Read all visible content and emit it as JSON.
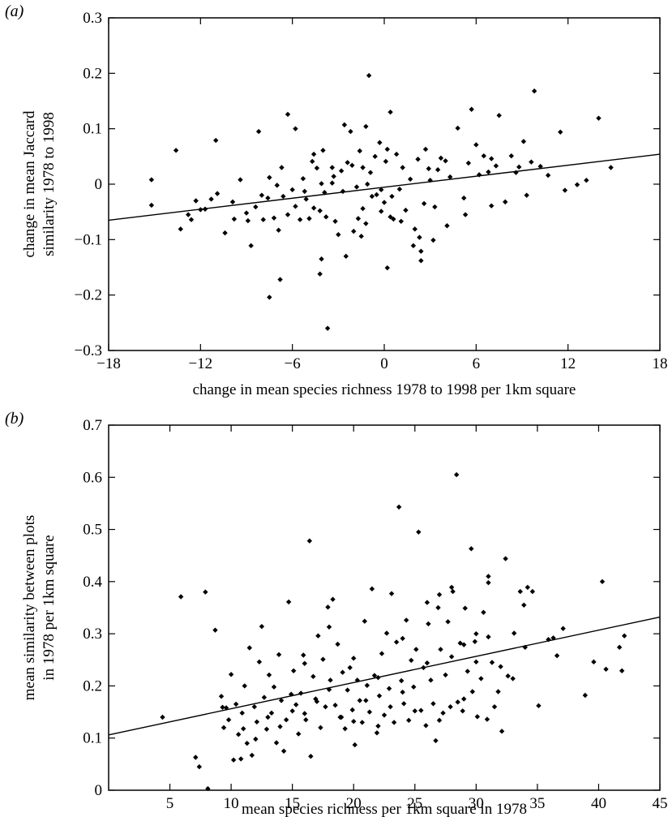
{
  "chart_data": [
    {
      "type": "scatter",
      "panel": "(a)",
      "panel_letter": "a",
      "xlabel": "change in mean species richness 1978 to 1998 per 1km square",
      "ylabel_lines": [
        "change in mean Jaccard",
        "similarity 1978 to 1998"
      ],
      "xlim": [
        -18,
        18
      ],
      "ylim": [
        -0.3,
        0.3
      ],
      "xticks": [
        -18,
        -12,
        -6,
        0,
        6,
        12,
        18
      ],
      "yticks": [
        -0.3,
        -0.2,
        -0.1,
        0,
        0.1,
        0.2,
        0.3
      ],
      "xtick_labels": [
        "−18",
        "−12",
        "−6",
        "0",
        "6",
        "12",
        "18"
      ],
      "ytick_labels": [
        "−0.3",
        "−0.2",
        "−0.1",
        "0",
        "0.1",
        "0.2",
        "0.3"
      ],
      "regression_line": {
        "x": [
          -18,
          18
        ],
        "y": [
          -0.065,
          0.054
        ]
      },
      "points": [
        [
          -15.2,
          0.008
        ],
        [
          -15.2,
          -0.038
        ],
        [
          -13.6,
          0.061
        ],
        [
          -13.3,
          -0.081
        ],
        [
          -12.8,
          -0.055
        ],
        [
          -12.6,
          -0.064
        ],
        [
          -12.3,
          -0.03
        ],
        [
          -11.7,
          -0.045
        ],
        [
          -11.3,
          -0.027
        ],
        [
          -11.0,
          0.079
        ],
        [
          -10.4,
          -0.088
        ],
        [
          -9.8,
          -0.063
        ],
        [
          -9.4,
          0.008
        ],
        [
          -9.0,
          -0.052
        ],
        [
          -8.9,
          -0.066
        ],
        [
          -8.4,
          -0.041
        ],
        [
          -8.0,
          -0.02
        ],
        [
          -7.9,
          -0.064
        ],
        [
          -7.5,
          0.012
        ],
        [
          -7.2,
          -0.061
        ],
        [
          -7.0,
          -0.002
        ],
        [
          -6.9,
          -0.083
        ],
        [
          -6.6,
          -0.022
        ],
        [
          -6.3,
          -0.055
        ],
        [
          -6.3,
          0.126
        ],
        [
          -5.8,
          -0.04
        ],
        [
          -5.8,
          0.1
        ],
        [
          -5.5,
          -0.064
        ],
        [
          -5.3,
          0.01
        ],
        [
          -5.2,
          -0.013
        ],
        [
          -4.9,
          -0.062
        ],
        [
          -4.6,
          -0.043
        ],
        [
          -4.4,
          0.029
        ],
        [
          -4.1,
          0.001
        ],
        [
          -4.0,
          0.061
        ],
        [
          -3.9,
          -0.015
        ],
        [
          -3.8,
          -0.059
        ],
        [
          -3.4,
          0.002
        ],
        [
          -3.2,
          -0.067
        ],
        [
          -2.8,
          0.024
        ],
        [
          -2.7,
          -0.013
        ],
        [
          -2.4,
          0.039
        ],
        [
          -2.1,
          0.034
        ],
        [
          -1.8,
          -0.005
        ],
        [
          -1.6,
          0.06
        ],
        [
          -1.4,
          -0.044
        ],
        [
          -1.2,
          -0.071
        ],
        [
          -1.1,
          0.0
        ],
        [
          -0.8,
          -0.022
        ],
        [
          -0.6,
          0.05
        ],
        [
          -0.5,
          -0.019
        ],
        [
          -0.3,
          0.075
        ],
        [
          -0.2,
          -0.049
        ],
        [
          0.0,
          -0.033
        ],
        [
          0.2,
          0.063
        ],
        [
          0.4,
          -0.059
        ],
        [
          0.5,
          -0.022
        ],
        [
          0.8,
          0.054
        ],
        [
          1.2,
          0.03
        ],
        [
          1.4,
          -0.047
        ],
        [
          1.7,
          0.009
        ],
        [
          2.0,
          -0.081
        ],
        [
          2.2,
          0.045
        ],
        [
          2.4,
          -0.121
        ],
        [
          2.6,
          -0.035
        ],
        [
          2.9,
          0.028
        ],
        [
          3.2,
          -0.101
        ],
        [
          3.7,
          0.047
        ],
        [
          4.1,
          -0.075
        ],
        [
          4.3,
          0.013
        ],
        [
          4.8,
          0.101
        ],
        [
          5.2,
          -0.025
        ],
        [
          5.5,
          0.038
        ],
        [
          5.7,
          0.135
        ],
        [
          6.2,
          0.017
        ],
        [
          6.5,
          0.051
        ],
        [
          7.0,
          -0.039
        ],
        [
          7.3,
          0.033
        ],
        [
          7.5,
          0.124
        ],
        [
          7.9,
          -0.032
        ],
        [
          8.3,
          0.051
        ],
        [
          8.6,
          0.021
        ],
        [
          9.1,
          0.077
        ],
        [
          9.6,
          0.04
        ],
        [
          9.8,
          0.168
        ],
        [
          10.2,
          0.032
        ],
        [
          10.7,
          0.016
        ],
        [
          11.5,
          0.094
        ],
        [
          11.8,
          -0.011
        ],
        [
          12.6,
          -0.001
        ],
        [
          13.2,
          0.007
        ],
        [
          14.0,
          0.119
        ],
        [
          14.8,
          0.03
        ],
        [
          -8.7,
          -0.111
        ],
        [
          -6.8,
          -0.172
        ],
        [
          -7.5,
          -0.204
        ],
        [
          -3.7,
          -0.26
        ],
        [
          -4.2,
          -0.162
        ],
        [
          -4.1,
          -0.135
        ],
        [
          -2.5,
          -0.13
        ],
        [
          -1.5,
          -0.094
        ],
        [
          0.2,
          -0.151
        ],
        [
          2.4,
          -0.138
        ],
        [
          -1.0,
          0.196
        ],
        [
          0.4,
          0.13
        ],
        [
          -2.6,
          0.107
        ],
        [
          -2.2,
          0.095
        ],
        [
          -1.2,
          0.104
        ],
        [
          -8.2,
          0.095
        ],
        [
          -4.6,
          0.054
        ],
        [
          -3.4,
          0.03
        ],
        [
          1.9,
          -0.111
        ],
        [
          2.3,
          -0.096
        ],
        [
          3.3,
          -0.041
        ],
        [
          1.1,
          -0.067
        ],
        [
          0.6,
          -0.063
        ],
        [
          -0.2,
          -0.01
        ],
        [
          -0.9,
          0.021
        ],
        [
          0.1,
          0.041
        ],
        [
          1.0,
          -0.009
        ],
        [
          3.0,
          0.007
        ],
        [
          4.0,
          0.042
        ],
        [
          6.0,
          0.071
        ],
        [
          8.8,
          0.031
        ],
        [
          9.3,
          -0.02
        ],
        [
          7.0,
          0.046
        ],
        [
          5.3,
          -0.055
        ],
        [
          -5.1,
          -0.027
        ],
        [
          -6.0,
          -0.01
        ],
        [
          -9.9,
          -0.032
        ],
        [
          -10.9,
          -0.017
        ],
        [
          -12.0,
          -0.046
        ],
        [
          -3.0,
          -0.091
        ],
        [
          -2.0,
          -0.085
        ],
        [
          -1.7,
          -0.062
        ],
        [
          -4.7,
          0.041
        ],
        [
          -6.7,
          0.03
        ],
        [
          -7.6,
          -0.025
        ],
        [
          -4.2,
          -0.048
        ],
        [
          2.7,
          0.063
        ],
        [
          3.5,
          0.026
        ],
        [
          6.8,
          0.022
        ],
        [
          -3.3,
          0.014
        ],
        [
          -1.4,
          0.03
        ]
      ]
    },
    {
      "type": "scatter",
      "panel": "(b)",
      "panel_letter": "b",
      "xlabel": "mean species richness per 1km square in 1978",
      "ylabel_lines": [
        "mean similarity between plots",
        "in 1978 per 1km square"
      ],
      "xlim": [
        0,
        45
      ],
      "ylim": [
        0,
        0.7
      ],
      "xticks": [
        5,
        10,
        15,
        20,
        25,
        30,
        35,
        40,
        45
      ],
      "yticks": [
        0,
        0.1,
        0.2,
        0.3,
        0.4,
        0.5,
        0.6,
        0.7
      ],
      "xtick_labels": [
        "5",
        "10",
        "15",
        "20",
        "25",
        "30",
        "35",
        "40",
        "45"
      ],
      "ytick_labels": [
        "0",
        "0.1",
        "0.2",
        "0.3",
        "0.4",
        "0.5",
        "0.6",
        "0.7"
      ],
      "regression_line": {
        "x": [
          0,
          45
        ],
        "y": [
          0.106,
          0.332
        ]
      },
      "points": [
        [
          4.4,
          0.14
        ],
        [
          5.9,
          0.371
        ],
        [
          7.1,
          0.063
        ],
        [
          7.4,
          0.045
        ],
        [
          7.9,
          0.38
        ],
        [
          8.1,
          0.003
        ],
        [
          8.7,
          0.307
        ],
        [
          9.2,
          0.18
        ],
        [
          9.4,
          0.12
        ],
        [
          9.6,
          0.158
        ],
        [
          9.8,
          0.135
        ],
        [
          10.0,
          0.222
        ],
        [
          10.2,
          0.058
        ],
        [
          10.4,
          0.165
        ],
        [
          10.6,
          0.107
        ],
        [
          10.9,
          0.148
        ],
        [
          11.1,
          0.2
        ],
        [
          11.3,
          0.09
        ],
        [
          11.5,
          0.273
        ],
        [
          11.7,
          0.067
        ],
        [
          11.9,
          0.16
        ],
        [
          12.1,
          0.131
        ],
        [
          12.3,
          0.246
        ],
        [
          12.5,
          0.314
        ],
        [
          12.7,
          0.178
        ],
        [
          12.9,
          0.117
        ],
        [
          13.1,
          0.221
        ],
        [
          13.3,
          0.148
        ],
        [
          13.5,
          0.198
        ],
        [
          13.7,
          0.091
        ],
        [
          13.9,
          0.26
        ],
        [
          14.1,
          0.172
        ],
        [
          14.3,
          0.075
        ],
        [
          14.5,
          0.135
        ],
        [
          14.7,
          0.361
        ],
        [
          14.9,
          0.184
        ],
        [
          15.1,
          0.229
        ],
        [
          15.3,
          0.164
        ],
        [
          15.5,
          0.108
        ],
        [
          15.7,
          0.186
        ],
        [
          15.9,
          0.259
        ],
        [
          16.1,
          0.135
        ],
        [
          16.4,
          0.478
        ],
        [
          16.5,
          0.065
        ],
        [
          16.7,
          0.218
        ],
        [
          16.9,
          0.175
        ],
        [
          17.1,
          0.296
        ],
        [
          17.3,
          0.12
        ],
        [
          17.5,
          0.251
        ],
        [
          17.7,
          0.16
        ],
        [
          17.9,
          0.351
        ],
        [
          18.1,
          0.211
        ],
        [
          18.3,
          0.366
        ],
        [
          18.5,
          0.163
        ],
        [
          18.7,
          0.28
        ],
        [
          18.9,
          0.14
        ],
        [
          19.1,
          0.226
        ],
        [
          19.3,
          0.118
        ],
        [
          19.5,
          0.192
        ],
        [
          19.7,
          0.235
        ],
        [
          19.9,
          0.154
        ],
        [
          20.1,
          0.087
        ],
        [
          20.3,
          0.211
        ],
        [
          20.5,
          0.172
        ],
        [
          20.7,
          0.13
        ],
        [
          20.9,
          0.324
        ],
        [
          21.1,
          0.201
        ],
        [
          21.3,
          0.15
        ],
        [
          21.5,
          0.386
        ],
        [
          21.7,
          0.22
        ],
        [
          21.9,
          0.11
        ],
        [
          22.1,
          0.181
        ],
        [
          22.3,
          0.262
        ],
        [
          22.5,
          0.144
        ],
        [
          22.7,
          0.301
        ],
        [
          22.9,
          0.195
        ],
        [
          23.1,
          0.377
        ],
        [
          23.3,
          0.13
        ],
        [
          23.5,
          0.284
        ],
        [
          23.7,
          0.543
        ],
        [
          23.9,
          0.21
        ],
        [
          24.1,
          0.166
        ],
        [
          24.3,
          0.326
        ],
        [
          24.5,
          0.134
        ],
        [
          24.7,
          0.249
        ],
        [
          24.9,
          0.198
        ],
        [
          25.1,
          0.27
        ],
        [
          25.3,
          0.495
        ],
        [
          25.5,
          0.153
        ],
        [
          25.7,
          0.235
        ],
        [
          25.9,
          0.124
        ],
        [
          26.1,
          0.319
        ],
        [
          26.3,
          0.211
        ],
        [
          26.5,
          0.166
        ],
        [
          26.7,
          0.095
        ],
        [
          26.9,
          0.35
        ],
        [
          27.1,
          0.27
        ],
        [
          27.3,
          0.148
        ],
        [
          27.5,
          0.221
        ],
        [
          27.7,
          0.323
        ],
        [
          27.9,
          0.16
        ],
        [
          28.1,
          0.381
        ],
        [
          28.4,
          0.605
        ],
        [
          28.5,
          0.169
        ],
        [
          28.7,
          0.282
        ],
        [
          28.9,
          0.152
        ],
        [
          29.1,
          0.349
        ],
        [
          29.3,
          0.228
        ],
        [
          29.6,
          0.463
        ],
        [
          29.7,
          0.189
        ],
        [
          29.9,
          0.285
        ],
        [
          30.1,
          0.141
        ],
        [
          30.4,
          0.214
        ],
        [
          30.6,
          0.341
        ],
        [
          30.9,
          0.136
        ],
        [
          31.0,
          0.41
        ],
        [
          31.3,
          0.245
        ],
        [
          31.5,
          0.16
        ],
        [
          31.8,
          0.189
        ],
        [
          32.1,
          0.113
        ],
        [
          32.4,
          0.444
        ],
        [
          32.6,
          0.219
        ],
        [
          33.1,
          0.301
        ],
        [
          33.6,
          0.381
        ],
        [
          33.9,
          0.355
        ],
        [
          34.2,
          0.389
        ],
        [
          34.6,
          0.381
        ],
        [
          35.1,
          0.162
        ],
        [
          35.9,
          0.289
        ],
        [
          36.3,
          0.292
        ],
        [
          36.6,
          0.258
        ],
        [
          37.1,
          0.31
        ],
        [
          38.9,
          0.182
        ],
        [
          39.6,
          0.246
        ],
        [
          40.3,
          0.4
        ],
        [
          40.6,
          0.232
        ],
        [
          41.7,
          0.274
        ],
        [
          41.9,
          0.229
        ],
        [
          42.1,
          0.296
        ],
        [
          9.3,
          0.159
        ],
        [
          10.8,
          0.06
        ],
        [
          11.0,
          0.118
        ],
        [
          12.0,
          0.098
        ],
        [
          13.0,
          0.14
        ],
        [
          14.0,
          0.122
        ],
        [
          15.0,
          0.152
        ],
        [
          16.0,
          0.147
        ],
        [
          17.0,
          0.17
        ],
        [
          18.0,
          0.193
        ],
        [
          19.0,
          0.14
        ],
        [
          20.0,
          0.132
        ],
        [
          21.0,
          0.172
        ],
        [
          22.0,
          0.123
        ],
        [
          23.0,
          0.16
        ],
        [
          24.0,
          0.188
        ],
        [
          25.0,
          0.152
        ],
        [
          26.0,
          0.244
        ],
        [
          27.0,
          0.134
        ],
        [
          28.0,
          0.256
        ],
        [
          29.0,
          0.175
        ],
        [
          30.0,
          0.246
        ],
        [
          31.0,
          0.294
        ],
        [
          32.0,
          0.237
        ],
        [
          33.0,
          0.214
        ],
        [
          34.0,
          0.274
        ],
        [
          16.0,
          0.243
        ],
        [
          18.0,
          0.313
        ],
        [
          20.0,
          0.253
        ],
        [
          22.0,
          0.216
        ],
        [
          24.0,
          0.291
        ],
        [
          26.0,
          0.36
        ],
        [
          27.0,
          0.375
        ],
        [
          28.0,
          0.389
        ],
        [
          29.0,
          0.279
        ],
        [
          30.0,
          0.3
        ],
        [
          31.0,
          0.398
        ]
      ]
    }
  ]
}
